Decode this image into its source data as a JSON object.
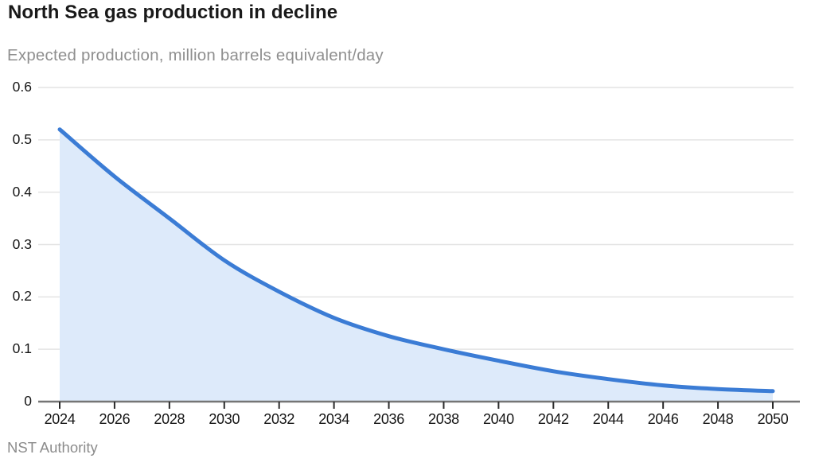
{
  "title": "North Sea gas production in decline",
  "subtitle": "Expected production, million barrels equivalent/day",
  "source": "NST Authority",
  "chart_data": {
    "type": "area",
    "title": "North Sea gas production in decline",
    "subtitle": "Expected production, million barrels equivalent/day",
    "xlabel": "",
    "ylabel": "million barrels equivalent/day",
    "x": [
      2024,
      2026,
      2028,
      2030,
      2032,
      2034,
      2036,
      2038,
      2040,
      2042,
      2044,
      2046,
      2048,
      2050
    ],
    "values": [
      0.52,
      0.43,
      0.35,
      0.27,
      0.21,
      0.16,
      0.125,
      0.1,
      0.078,
      0.058,
      0.043,
      0.031,
      0.024,
      0.02
    ],
    "x_tick_labels": [
      "2024",
      "2026",
      "2028",
      "2030",
      "2032",
      "2034",
      "2036",
      "2038",
      "2040",
      "2042",
      "2044",
      "2046",
      "2048",
      "2050"
    ],
    "y_ticks": [
      0,
      0.1,
      0.2,
      0.3,
      0.4,
      0.5,
      0.6
    ],
    "y_tick_labels": [
      "0",
      "0.1",
      "0.2",
      "0.3",
      "0.4",
      "0.5",
      "0.6"
    ],
    "xlim": [
      2024,
      2050
    ],
    "ylim": [
      0,
      0.6
    ],
    "grid": "horizontal",
    "legend": "none",
    "colors": {
      "line": "#3b7cd5",
      "area_fill": "#ddeafa",
      "gridline": "#e4e4e4",
      "axis_line": "#757575",
      "tick_mark": "#2a2a2a",
      "tick_label": "#151515",
      "title": "#191919",
      "subtitle": "#8f8f8f",
      "source": "#8c8c8c"
    }
  }
}
